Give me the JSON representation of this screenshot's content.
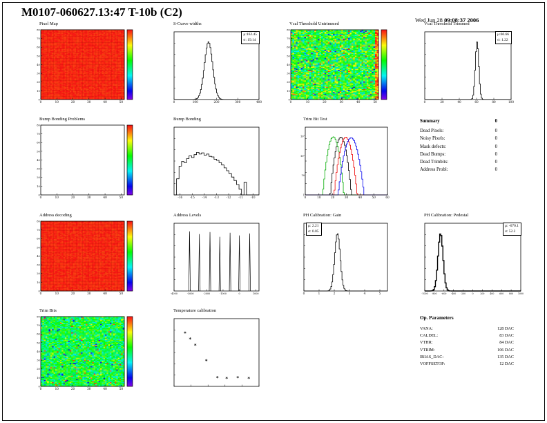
{
  "page": {
    "title": "M0107-060627.13:47 T-10b (C2)",
    "date_prefix": "Wed Jun 28 ",
    "date_bold": "09:08:37 2006"
  },
  "summary": {
    "title": "Summary",
    "total": "0",
    "rows": [
      {
        "label": "Dead Pixels:",
        "value": "0"
      },
      {
        "label": "Noisy Pixels:",
        "value": "0"
      },
      {
        "label": "Mask defects:",
        "value": "0"
      },
      {
        "label": "Dead Bumps:",
        "value": "0"
      },
      {
        "label": "Dead Trimbits:",
        "value": "0"
      },
      {
        "label": "Address Probl:",
        "value": "0"
      }
    ]
  },
  "op_parameters": {
    "title": "Op. Parameters",
    "rows": [
      {
        "label": "VANA:",
        "value": "128 DAC"
      },
      {
        "label": "CALDEL:",
        "value": "83 DAC"
      },
      {
        "label": "VTHR:",
        "value": "84 DAC"
      },
      {
        "label": "VTRIM:",
        "value": "106 DAC"
      },
      {
        "label": "IBIAS_DAC:",
        "value": "135 DAC"
      },
      {
        "label": "VOFFSETOP:",
        "value": "12 DAC"
      }
    ]
  },
  "chart_data": [
    {
      "id": "pixel-map",
      "title": "Pixel Map",
      "type": "heatmap",
      "mode": "solid",
      "xlim": [
        0,
        52
      ],
      "ylim": [
        0,
        80
      ],
      "xticks": [
        0,
        10,
        20,
        30,
        40,
        50
      ],
      "yticks": [
        0,
        10,
        20,
        30,
        40,
        50,
        60,
        70,
        80
      ],
      "colorbar": true,
      "base_color": "#ee1100"
    },
    {
      "id": "scurve-widths",
      "title": "S-Curve widths",
      "type": "histogram",
      "dist": "gauss",
      "mu": 162.45,
      "sigma": 19.14,
      "xlim": [
        0,
        400
      ],
      "xticks": [
        0,
        100,
        200,
        300,
        400
      ],
      "stats": {
        "mu": "μ:162.45",
        "sigma": "σ: 19.14"
      }
    },
    {
      "id": "vcal-threshold-untrimmed",
      "title": "Vcal Threshold Untrimmed",
      "type": "heatmap",
      "mode": "noise",
      "noise_mean": 0.55,
      "noise_sd": 0.17,
      "hot_right_column": true,
      "xlim": [
        0,
        52
      ],
      "ylim": [
        0,
        80
      ],
      "xticks": [
        0,
        10,
        20,
        30,
        40,
        50
      ],
      "yticks": [
        0,
        10,
        20,
        30,
        40,
        50,
        60,
        70,
        80
      ],
      "colorbar": true
    },
    {
      "id": "vcal-threshold-trimmed",
      "title": "Vcal Threshold Trimmed",
      "type": "histogram",
      "dist": "gauss",
      "mu": 60.66,
      "sigma": 1.22,
      "draw_sigma": 2.0,
      "xlim": [
        0,
        100
      ],
      "xticks": [
        0,
        20,
        40,
        60,
        80,
        100
      ],
      "stats": {
        "mu": "μ:60.66",
        "sigma": "σ: 1.22"
      }
    },
    {
      "id": "bump-bonding-problems",
      "title": "Bump Bonding Problems",
      "type": "heatmap",
      "mode": "empty",
      "xlim": [
        0,
        52
      ],
      "ylim": [
        0,
        80
      ],
      "xticks": [
        0,
        10,
        20,
        30,
        40,
        50
      ],
      "yticks": [
        0,
        10,
        20,
        30,
        40,
        50,
        60,
        70,
        80
      ],
      "colorbar": true
    },
    {
      "id": "bump-bonding",
      "title": "Bump Bonding",
      "type": "histogram",
      "dist": "bins",
      "xlim": [
        -16.5,
        -9.5
      ],
      "xticks": [
        -16,
        -15,
        -14,
        -13,
        -12,
        -11,
        -10
      ],
      "bins": [
        0.0,
        0.28,
        0.5,
        0.58,
        0.56,
        0.63,
        0.68,
        0.65,
        0.7,
        0.74,
        0.71,
        0.73,
        0.69,
        0.71,
        0.67,
        0.66,
        0.62,
        0.6,
        0.56,
        0.52,
        0.47,
        0.42,
        0.37,
        0.31,
        0.25,
        0.18,
        0.1,
        0.0,
        0.22,
        0.0,
        0.0,
        0.0,
        0.0,
        0.0
      ]
    },
    {
      "id": "trim-bit-test",
      "title": "Trim Bit Test",
      "type": "multi-histogram",
      "log_y": true,
      "xlim": [
        0,
        60
      ],
      "xticks": [
        0,
        10,
        20,
        30,
        40,
        50,
        60
      ],
      "ylabels": [
        "1",
        "10",
        "10²",
        "10³"
      ],
      "series": [
        {
          "name": "trim-bits-14",
          "color": "#000000",
          "mu": 26.0,
          "sigma": 2.1,
          "peak": 900
        },
        {
          "name": "trim-bits-13",
          "color": "#00aa00",
          "mu": 20.5,
          "sigma": 2.1,
          "peak": 950
        },
        {
          "name": "trim-bits-11",
          "color": "#ee0000",
          "mu": 29.5,
          "sigma": 2.3,
          "peak": 900
        },
        {
          "name": "trim-bits-7",
          "color": "#0000ee",
          "mu": 33.5,
          "sigma": 2.6,
          "peak": 850
        }
      ]
    },
    {
      "id": "address-decoding",
      "title": "Address decoding",
      "type": "heatmap",
      "mode": "solid",
      "xlim": [
        0,
        52
      ],
      "ylim": [
        0,
        80
      ],
      "xticks": [
        0,
        10,
        20,
        30,
        40,
        50
      ],
      "yticks": [
        0,
        10,
        20,
        30,
        40,
        50,
        60,
        70,
        80
      ],
      "colorbar": true,
      "base_color": "#ee1100"
    },
    {
      "id": "address-levels",
      "title": "Address Levels",
      "type": "spikes",
      "small_xlabels": true,
      "xlim": [
        -4000,
        1200
      ],
      "xticks": [
        -4000,
        -3000,
        -2000,
        -1000,
        0,
        1000
      ],
      "spikes": [
        {
          "x": -3050,
          "h": 0.88
        },
        {
          "x": -2450,
          "h": 0.84
        },
        {
          "x": -1800,
          "h": 0.87
        },
        {
          "x": -1200,
          "h": 0.8
        },
        {
          "x": -570,
          "h": 0.86
        },
        {
          "x": 0,
          "h": 0.82
        },
        {
          "x": 630,
          "h": 0.85
        }
      ]
    },
    {
      "id": "ph-calibration-gain",
      "title": "PH Calibration: Gain",
      "type": "histogram",
      "dist": "gauss",
      "mu": 2.21,
      "sigma": 0.05,
      "draw_sigma": 0.18,
      "xlim": [
        0,
        5.5
      ],
      "xticks": [
        0,
        1,
        2,
        3,
        4,
        5
      ],
      "stats": {
        "mu": "μ: 2.21",
        "sigma": "σ: 0.05"
      },
      "stats_pos": "left"
    },
    {
      "id": "ph-calibration-pedestal",
      "title": "PH Calibration: Pedestal",
      "type": "histogram",
      "dist": "gauss",
      "mu": -670.1,
      "sigma": 52.2,
      "thick": true,
      "xlim": [
        -1000,
        1000
      ],
      "xticks": [
        -1000,
        -800,
        -600,
        -400,
        -200,
        0,
        200,
        400,
        600,
        800,
        1000
      ],
      "stats": {
        "mu": "μ: -670.1",
        "sigma": "σ: 52.2"
      }
    },
    {
      "id": "trim-bits",
      "title": "Trim Bits",
      "type": "heatmap",
      "mode": "noise",
      "noise_mean": 0.52,
      "noise_sd": 0.13,
      "xlim": [
        0,
        52
      ],
      "ylim": [
        0,
        80
      ],
      "xticks": [
        0,
        10,
        20,
        30,
        40,
        50
      ],
      "yticks": [
        0,
        10,
        20,
        30,
        40,
        50,
        60,
        70,
        80
      ],
      "colorbar": true
    },
    {
      "id": "temperature-calibration",
      "title": "Temperature calibration",
      "type": "scatter",
      "marker": "*",
      "tick_labels": false,
      "xlim": [
        0,
        10
      ],
      "ylim": [
        0,
        100
      ],
      "xticks": [
        0,
        2,
        4,
        6,
        8,
        10
      ],
      "points": [
        [
          1.3,
          79
        ],
        [
          1.9,
          70
        ],
        [
          2.5,
          61
        ],
        [
          3.8,
          38
        ],
        [
          5.1,
          13
        ],
        [
          6.2,
          12
        ],
        [
          7.5,
          13
        ],
        [
          8.8,
          12
        ]
      ]
    }
  ]
}
